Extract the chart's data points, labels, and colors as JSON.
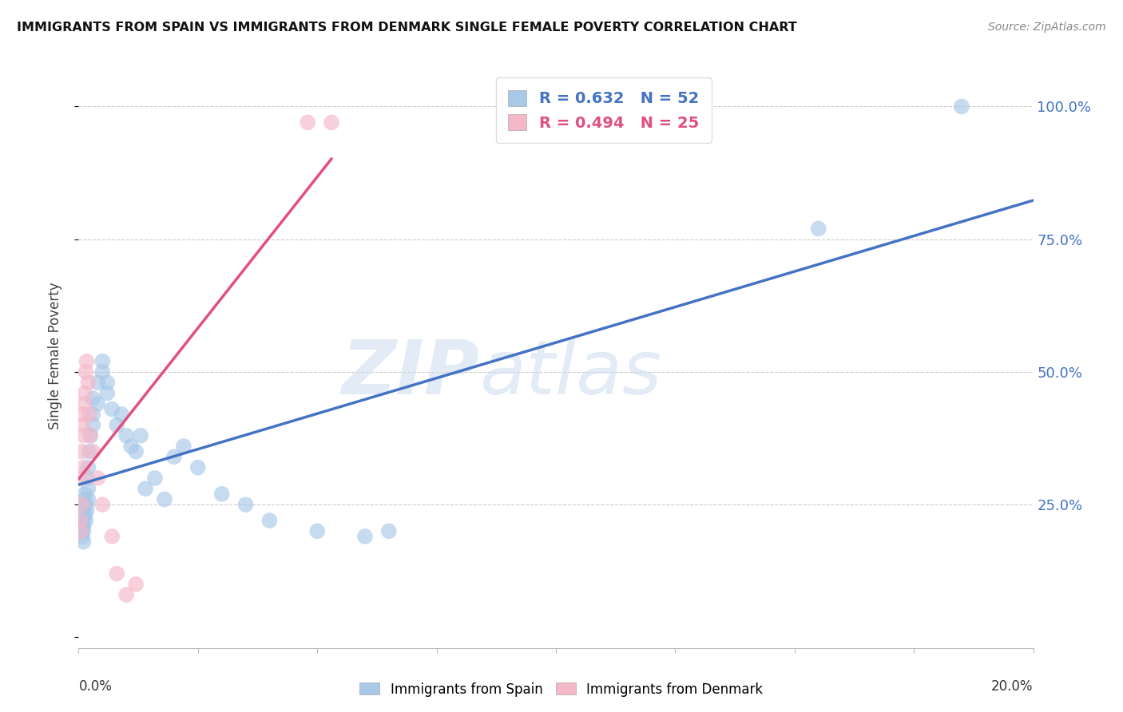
{
  "title": "IMMIGRANTS FROM SPAIN VS IMMIGRANTS FROM DENMARK SINGLE FEMALE POVERTY CORRELATION CHART",
  "source": "Source: ZipAtlas.com",
  "ylabel": "Single Female Poverty",
  "legend_blue": "R = 0.632   N = 52",
  "legend_pink": "R = 0.494   N = 25",
  "legend_label_blue": "Immigrants from Spain",
  "legend_label_pink": "Immigrants from Denmark",
  "blue_color": "#a8c8e8",
  "pink_color": "#f4b8c8",
  "blue_line_color": "#4472c4",
  "pink_line_color": "#e05080",
  "watermark_text": "ZIPatlas",
  "spain_x": [
    0.0005,
    0.0006,
    0.0007,
    0.0008,
    0.0009,
    0.001,
    0.001,
    0.001,
    0.001,
    0.001,
    0.0012,
    0.0013,
    0.0014,
    0.0015,
    0.0016,
    0.0017,
    0.0018,
    0.002,
    0.002,
    0.002,
    0.0022,
    0.0025,
    0.003,
    0.003,
    0.003,
    0.004,
    0.004,
    0.005,
    0.005,
    0.006,
    0.006,
    0.007,
    0.008,
    0.009,
    0.01,
    0.011,
    0.012,
    0.013,
    0.014,
    0.016,
    0.018,
    0.02,
    0.022,
    0.025,
    0.03,
    0.035,
    0.04,
    0.05,
    0.06,
    0.065,
    0.155,
    0.185
  ],
  "spain_y": [
    0.22,
    0.21,
    0.2,
    0.19,
    0.22,
    0.24,
    0.23,
    0.2,
    0.18,
    0.21,
    0.26,
    0.27,
    0.23,
    0.22,
    0.25,
    0.24,
    0.3,
    0.28,
    0.32,
    0.26,
    0.35,
    0.38,
    0.4,
    0.42,
    0.45,
    0.48,
    0.44,
    0.5,
    0.52,
    0.46,
    0.48,
    0.43,
    0.4,
    0.42,
    0.38,
    0.36,
    0.35,
    0.38,
    0.28,
    0.3,
    0.26,
    0.34,
    0.36,
    0.32,
    0.27,
    0.25,
    0.22,
    0.2,
    0.19,
    0.2,
    0.77,
    1.0
  ],
  "denmark_x": [
    0.0003,
    0.0004,
    0.0005,
    0.0006,
    0.0007,
    0.0008,
    0.0009,
    0.001,
    0.001,
    0.0012,
    0.0013,
    0.0015,
    0.0017,
    0.002,
    0.0022,
    0.0025,
    0.003,
    0.004,
    0.005,
    0.007,
    0.008,
    0.01,
    0.012,
    0.048,
    0.053
  ],
  "denmark_y": [
    0.22,
    0.2,
    0.3,
    0.25,
    0.35,
    0.4,
    0.42,
    0.38,
    0.32,
    0.44,
    0.46,
    0.5,
    0.52,
    0.48,
    0.42,
    0.38,
    0.35,
    0.3,
    0.25,
    0.19,
    0.12,
    0.08,
    0.1,
    0.97,
    0.97
  ],
  "xlim": [
    0.0,
    0.2
  ],
  "ylim": [
    -0.02,
    1.08
  ],
  "plot_ylim": [
    0.0,
    1.05
  ],
  "figsize": [
    14.06,
    8.92
  ],
  "dpi": 100
}
